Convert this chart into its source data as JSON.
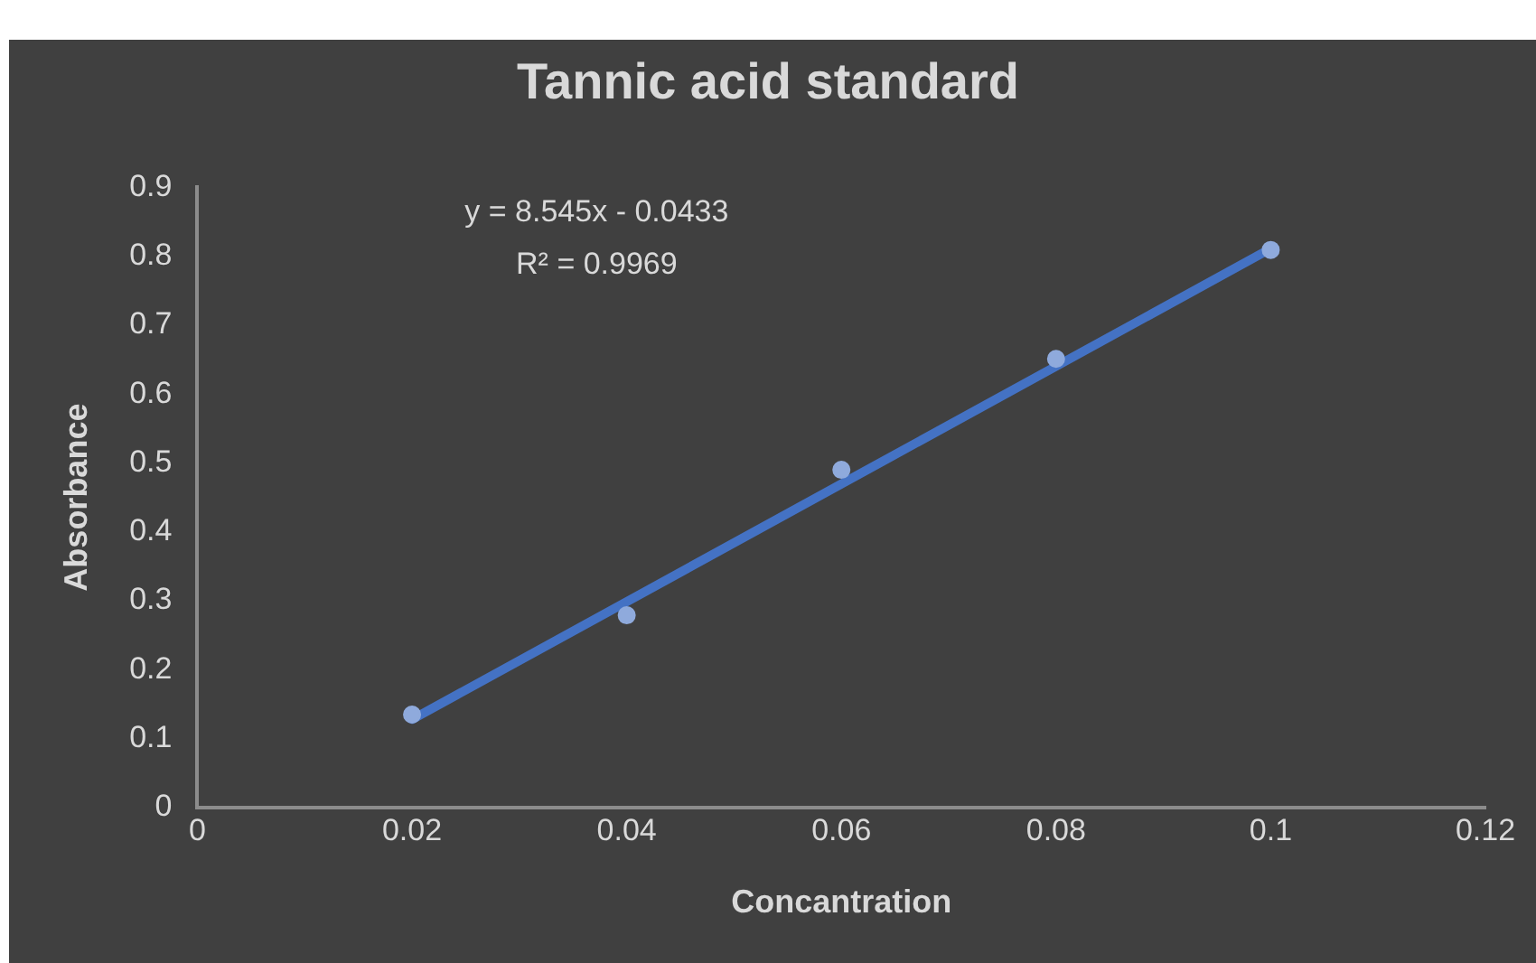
{
  "chart_data": {
    "type": "scatter",
    "title": "Tannic acid standard",
    "xlabel": "Concantration",
    "ylabel": "Absorbance",
    "annotations": [
      "y = 8.545x - 0.0433",
      "R² = 0.9969"
    ],
    "series": [
      {
        "type": "scatter",
        "marker": "circle",
        "color": "#8faadc",
        "x": [
          0.02,
          0.04,
          0.06,
          0.08,
          0.1
        ],
        "values": [
          0.135,
          0.279,
          0.49,
          0.651,
          0.809
        ]
      },
      {
        "type": "line",
        "marker": "none",
        "line_style": "solid",
        "color": "#4472c4",
        "x": [
          0.02,
          0.1
        ],
        "values": [
          0.128,
          0.811
        ]
      }
    ],
    "xlim": [
      0,
      0.12
    ],
    "xticks": [
      0,
      0.02,
      0.04,
      0.06,
      0.08,
      0.1,
      0.12
    ],
    "ylim": [
      0,
      0.9
    ],
    "yticks": [
      0,
      0.1,
      0.2,
      0.3,
      0.4,
      0.5,
      0.6,
      0.7,
      0.8,
      0.9
    ],
    "grid": false,
    "legend": false
  }
}
